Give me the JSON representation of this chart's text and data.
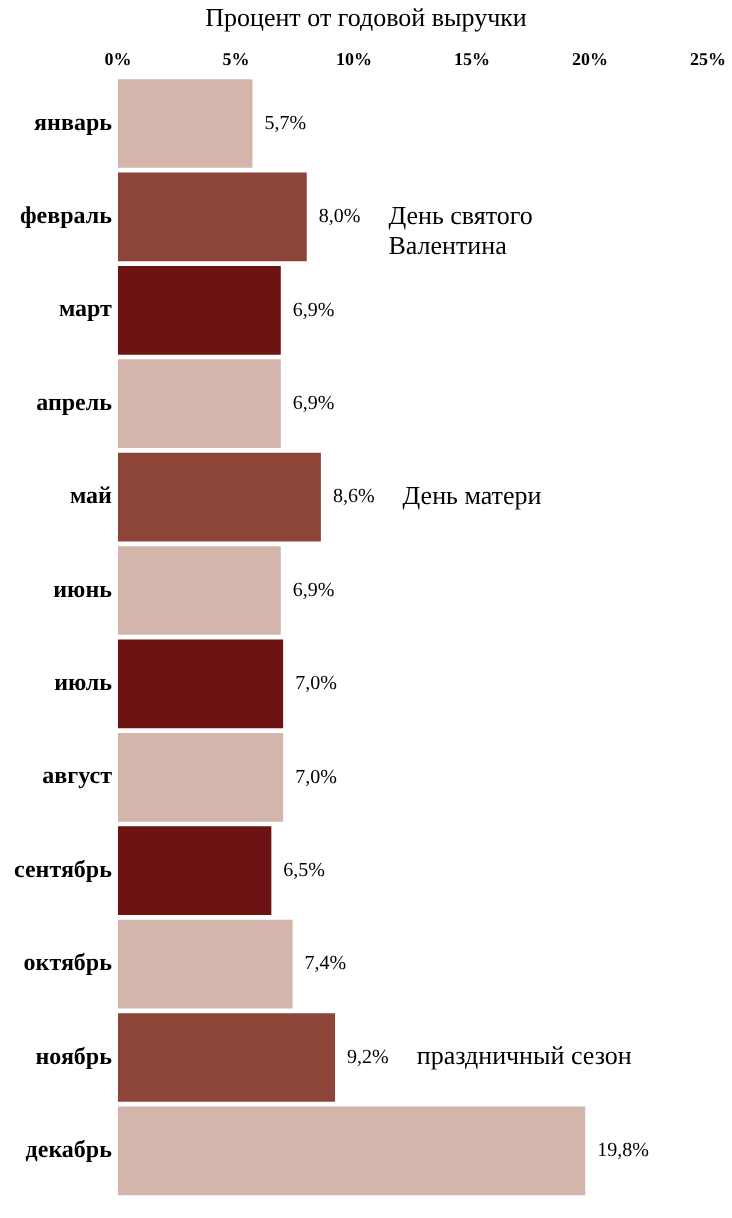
{
  "chart_data": {
    "type": "bar",
    "orientation": "horizontal",
    "title": "Процент от годовой выручки",
    "categories": [
      "январь",
      "февраль",
      "март",
      "апрель",
      "май",
      "июнь",
      "июль",
      "август",
      "сентябрь",
      "октябрь",
      "ноябрь",
      "декабрь"
    ],
    "values": [
      5.7,
      8.0,
      6.9,
      6.9,
      8.6,
      6.9,
      7.0,
      7.0,
      6.5,
      7.4,
      9.2,
      19.8
    ],
    "colors": [
      "#d4b5ab",
      "#8e4539",
      "#6d1313",
      "#d4b5ab",
      "#8e4539",
      "#d4b5ab",
      "#6d1313",
      "#d4b5ab",
      "#6d1313",
      "#d4b5ab",
      "#8e4539",
      "#d4b5ab"
    ],
    "value_labels": [
      "5,7%",
      "8,0%",
      "6,9%",
      "6,9%",
      "8,6%",
      "6,9%",
      "7,0%",
      "7,0%",
      "6,5%",
      "7,4%",
      "9,2%",
      "19,8%"
    ],
    "xlim": [
      0,
      25
    ],
    "xticks": [
      {
        "value": 0,
        "label": "0%"
      },
      {
        "value": 5,
        "label": "5%"
      },
      {
        "value": 10,
        "label": "10%"
      },
      {
        "value": 15,
        "label": "15%"
      },
      {
        "value": 20,
        "label": "20%"
      },
      {
        "value": 25,
        "label": "25%"
      }
    ],
    "annotations": [
      "День святого Валентина",
      "День матери",
      "праздничный сезон"
    ],
    "grid": false,
    "legend": false
  }
}
